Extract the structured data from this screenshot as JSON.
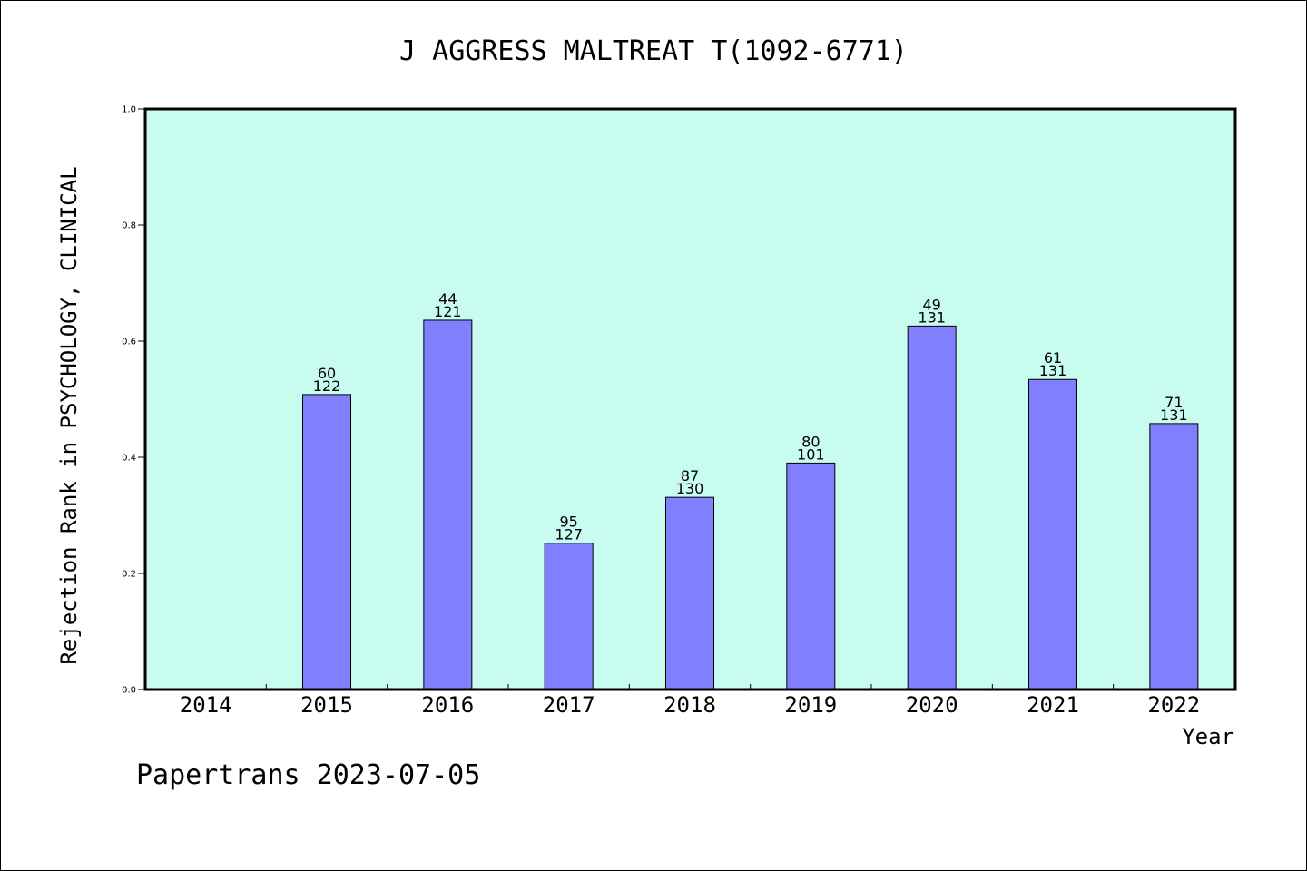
{
  "chart_data": {
    "type": "bar",
    "title": "J AGGRESS MALTREAT T(1092-6771)",
    "xlabel": "Year",
    "ylabel": "Rejection Rank in PSYCHOLOGY, CLINICAL",
    "ylim": [
      0,
      1.0
    ],
    "yticks": [
      "0.0",
      "0.2",
      "0.4",
      "0.6",
      "0.8",
      "1.0"
    ],
    "categories": [
      "2014",
      "2015",
      "2016",
      "2017",
      "2018",
      "2019",
      "2020",
      "2021",
      "2022"
    ],
    "values": [
      null,
      0.508,
      0.636,
      0.252,
      0.331,
      0.39,
      0.626,
      0.534,
      0.458
    ],
    "labels_top": [
      "",
      "60",
      "44",
      "95",
      "87",
      "80",
      "49",
      "61",
      "71"
    ],
    "labels_bottom": [
      "",
      "122",
      "121",
      "127",
      "130",
      "101",
      "131",
      "131",
      "131"
    ],
    "colors": {
      "plot_bg": "#c8fcee",
      "bar": "#8080ff"
    },
    "grid": false
  },
  "footer": "Papertrans 2023-07-05"
}
